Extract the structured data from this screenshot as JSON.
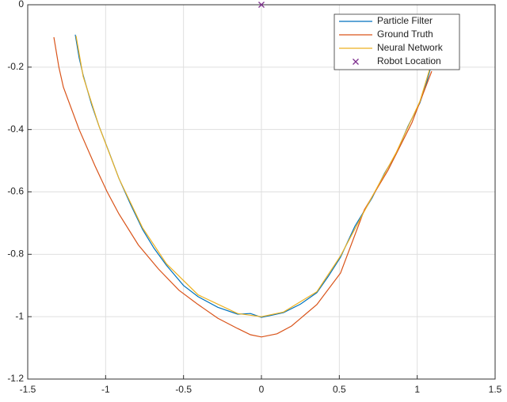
{
  "chart_data": {
    "type": "line",
    "xlim": [
      -1.5,
      1.5
    ],
    "xticks": [
      -1.5,
      -1,
      -0.5,
      0,
      0.5,
      1,
      1.5
    ],
    "ylim": [
      -1.2,
      0
    ],
    "yticks": [
      -1.2,
      -1,
      -0.8,
      -0.6,
      -0.4,
      -0.2,
      0
    ],
    "grid": true,
    "legend": "northeast",
    "series": [
      {
        "name": "Particle Filter",
        "color": "#0072bd",
        "x": [
          -1.195,
          -1.17,
          -1.144,
          -1.09,
          -1.042,
          -0.98,
          -0.915,
          -0.84,
          -0.763,
          -0.69,
          -0.61,
          -0.5,
          -0.407,
          -0.28,
          -0.153,
          -0.07,
          0,
          0.07,
          0.142,
          0.25,
          0.356,
          0.43,
          0.508,
          0.6,
          0.711,
          0.79,
          0.864,
          0.94,
          1.017,
          1.06,
          1.093
        ],
        "values": [
          -0.096,
          -0.17,
          -0.226,
          -0.32,
          -0.39,
          -0.47,
          -0.556,
          -0.64,
          -0.72,
          -0.78,
          -0.835,
          -0.9,
          -0.936,
          -0.97,
          -0.992,
          -0.99,
          -1.002,
          -0.995,
          -0.987,
          -0.96,
          -0.923,
          -0.87,
          -0.809,
          -0.71,
          -0.619,
          -0.54,
          -0.479,
          -0.39,
          -0.315,
          -0.25,
          -0.188
        ]
      },
      {
        "name": "Ground Truth",
        "color": "#d95319",
        "x": [
          -1.332,
          -1.3,
          -1.271,
          -1.17,
          -1.068,
          -0.99,
          -0.915,
          -0.79,
          -0.661,
          -0.53,
          -0.407,
          -0.28,
          -0.153,
          -0.07,
          0,
          0.1,
          0.193,
          0.356,
          0.508,
          0.661,
          0.813,
          0.966,
          1.093
        ],
        "values": [
          -0.104,
          -0.2,
          -0.264,
          -0.4,
          -0.517,
          -0.6,
          -0.67,
          -0.77,
          -0.847,
          -0.915,
          -0.961,
          -1.005,
          -1.038,
          -1.058,
          -1.065,
          -1.055,
          -1.03,
          -0.961,
          -0.86,
          -0.657,
          -0.53,
          -0.378,
          -0.213
        ]
      },
      {
        "name": "Neural Network",
        "color": "#edb120",
        "x": [
          -1.19,
          -1.144,
          -1.042,
          -0.915,
          -0.763,
          -0.61,
          -0.407,
          -0.153,
          0,
          0.142,
          0.356,
          0.508,
          0.711,
          0.864,
          1.017,
          1.093
        ],
        "values": [
          -0.1,
          -0.23,
          -0.39,
          -0.556,
          -0.715,
          -0.83,
          -0.93,
          -0.99,
          -1.0,
          -0.985,
          -0.92,
          -0.805,
          -0.615,
          -0.475,
          -0.31,
          -0.185
        ]
      },
      {
        "name": "Robot Location",
        "color": "#7e2f8e",
        "marker": "x",
        "x": [
          0
        ],
        "values": [
          0
        ]
      }
    ]
  }
}
